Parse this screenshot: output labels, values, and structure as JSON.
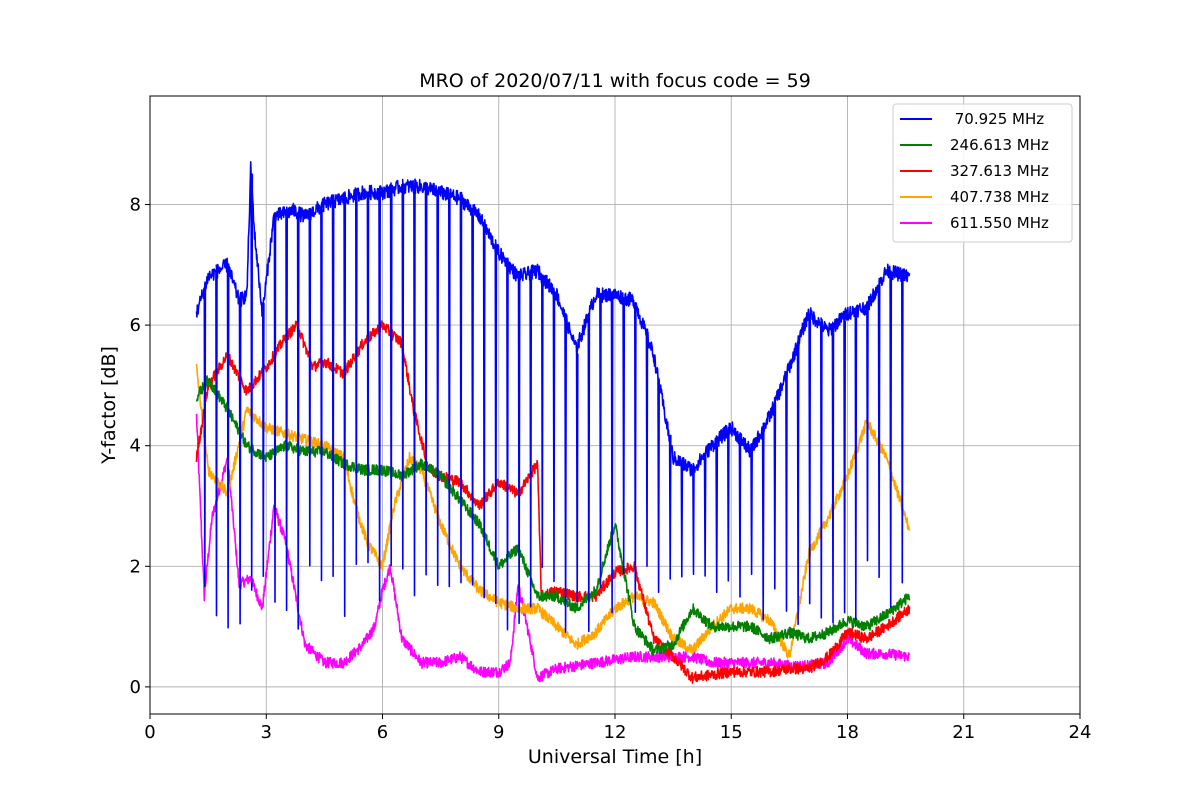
{
  "chart_data": {
    "type": "line",
    "title": "MRO of 2020/07/11 with focus code = 59",
    "xlabel": "Universal Time [h]",
    "ylabel": "Y-factor [dB]",
    "xlim": [
      0,
      24
    ],
    "ylim": [
      -0.45,
      9.8
    ],
    "xticks": [
      0,
      3,
      6,
      9,
      12,
      15,
      18,
      21,
      24
    ],
    "xtick_labels": [
      "0",
      "3",
      "6",
      "9",
      "12",
      "15",
      "18",
      "21",
      "24"
    ],
    "yticks": [
      0,
      2,
      4,
      6,
      8
    ],
    "ytick_labels": [
      "0",
      "2",
      "4",
      "6",
      "8"
    ],
    "grid": true,
    "legend_position": "top-right",
    "series": [
      {
        "name": " 70.925 MHz",
        "color": "#0000ff",
        "style": "dense vertical drop-outs roughly every 0.3 h",
        "x": [
          1.2,
          1.5,
          2.0,
          2.3,
          2.5,
          2.6,
          2.7,
          2.9,
          3.2,
          3.7,
          4.0,
          4.5,
          5.0,
          5.5,
          6.0,
          6.5,
          7.0,
          7.5,
          8.0,
          8.5,
          9.0,
          9.5,
          10.0,
          10.5,
          11.0,
          11.5,
          12.0,
          12.5,
          13.0,
          13.5,
          14.0,
          14.5,
          15.0,
          15.5,
          16.0,
          16.5,
          17.0,
          17.5,
          18.0,
          18.5,
          19.0,
          19.6
        ],
        "y": [
          6.2,
          6.8,
          7.0,
          6.4,
          6.5,
          8.6,
          7.5,
          6.2,
          7.8,
          7.9,
          7.8,
          8.0,
          8.1,
          8.2,
          8.2,
          8.3,
          8.3,
          8.2,
          8.1,
          7.8,
          7.2,
          6.8,
          6.9,
          6.5,
          5.6,
          6.5,
          6.5,
          6.4,
          5.5,
          3.8,
          3.6,
          4.0,
          4.3,
          3.9,
          4.5,
          5.3,
          6.2,
          5.9,
          6.2,
          6.3,
          6.9,
          6.8
        ],
        "dropouts_to": 1.5,
        "dropout_interval_h": 0.3
      },
      {
        "name": "246.613 MHz",
        "color": "#008000",
        "x": [
          1.2,
          1.5,
          2.0,
          2.5,
          3.0,
          3.5,
          4.0,
          4.5,
          5.0,
          5.5,
          6.0,
          6.5,
          7.0,
          7.5,
          8.0,
          8.5,
          9.0,
          9.5,
          10.0,
          10.5,
          11.0,
          11.5,
          12.0,
          12.5,
          13.0,
          13.5,
          14.0,
          14.5,
          15.0,
          15.5,
          16.0,
          16.5,
          17.0,
          17.5,
          18.0,
          18.5,
          19.0,
          19.6
        ],
        "y": [
          4.8,
          5.1,
          4.6,
          4.0,
          3.8,
          4.0,
          3.9,
          3.9,
          3.7,
          3.6,
          3.6,
          3.5,
          3.7,
          3.5,
          3.1,
          2.7,
          2.0,
          2.3,
          1.5,
          1.5,
          1.3,
          1.6,
          2.7,
          1.0,
          0.6,
          0.7,
          1.3,
          1.0,
          1.0,
          1.0,
          0.8,
          0.9,
          0.8,
          0.9,
          1.1,
          1.0,
          1.2,
          1.5
        ]
      },
      {
        "name": "327.613 MHz",
        "color": "#ff0000",
        "x": [
          1.2,
          1.5,
          2.0,
          2.5,
          3.0,
          3.5,
          3.8,
          4.2,
          4.5,
          5.0,
          5.5,
          6.0,
          6.5,
          6.8,
          7.2,
          7.5,
          8.0,
          8.5,
          9.0,
          9.5,
          10.0,
          10.1,
          10.5,
          11.0,
          11.5,
          12.0,
          12.5,
          13.0,
          13.5,
          14.0,
          14.5,
          15.0,
          15.5,
          16.0,
          16.5,
          17.0,
          17.5,
          18.0,
          18.5,
          19.0,
          19.6
        ],
        "y": [
          3.8,
          5.0,
          5.5,
          4.9,
          5.3,
          5.8,
          6.0,
          5.3,
          5.4,
          5.2,
          5.7,
          6.0,
          5.7,
          4.6,
          3.6,
          3.5,
          3.4,
          3.0,
          3.4,
          3.2,
          3.7,
          1.5,
          1.6,
          1.5,
          1.5,
          1.9,
          2.0,
          0.8,
          0.5,
          0.15,
          0.2,
          0.25,
          0.25,
          0.25,
          0.3,
          0.3,
          0.5,
          0.9,
          0.8,
          1.0,
          1.3
        ]
      },
      {
        "name": "407.738 MHz",
        "color": "#ffa500",
        "x": [
          1.2,
          1.5,
          2.0,
          2.5,
          3.0,
          3.5,
          4.0,
          4.5,
          5.0,
          5.3,
          5.6,
          6.0,
          6.3,
          6.7,
          7.0,
          7.5,
          8.0,
          8.5,
          9.0,
          9.5,
          10.0,
          10.5,
          11.0,
          11.5,
          12.0,
          12.5,
          13.0,
          13.5,
          14.0,
          14.5,
          15.0,
          15.5,
          16.0,
          16.5,
          17.0,
          17.5,
          18.0,
          18.5,
          19.0,
          19.6
        ],
        "y": [
          5.3,
          3.6,
          3.2,
          4.6,
          4.3,
          4.2,
          4.1,
          4.0,
          3.8,
          3.0,
          2.4,
          2.0,
          3.0,
          3.8,
          3.6,
          2.7,
          2.0,
          1.6,
          1.4,
          1.3,
          1.3,
          1.0,
          0.7,
          0.9,
          1.3,
          1.5,
          1.4,
          0.8,
          0.6,
          1.0,
          1.3,
          1.3,
          1.1,
          0.5,
          2.2,
          2.8,
          3.5,
          4.4,
          3.8,
          2.6
        ]
      },
      {
        "name": "611.550 MHz",
        "color": "#ff00ff",
        "x": [
          1.2,
          1.4,
          1.6,
          2.0,
          2.3,
          2.6,
          2.9,
          3.2,
          3.5,
          4.0,
          4.5,
          5.0,
          5.5,
          5.8,
          6.0,
          6.2,
          6.5,
          7.0,
          7.5,
          8.0,
          8.5,
          9.0,
          9.3,
          9.5,
          9.8,
          10.0,
          10.5,
          11.0,
          11.5,
          12.0,
          12.5,
          13.0,
          13.5,
          14.0,
          14.5,
          15.0,
          15.5,
          16.0,
          16.5,
          17.0,
          17.5,
          18.0,
          18.5,
          19.0,
          19.6
        ],
        "y": [
          4.5,
          1.5,
          2.8,
          3.8,
          1.7,
          1.8,
          1.3,
          3.0,
          2.4,
          0.7,
          0.4,
          0.4,
          0.7,
          1.0,
          1.6,
          2.0,
          0.8,
          0.4,
          0.4,
          0.5,
          0.25,
          0.25,
          0.4,
          1.7,
          0.8,
          0.15,
          0.3,
          0.35,
          0.4,
          0.45,
          0.5,
          0.5,
          0.5,
          0.5,
          0.4,
          0.4,
          0.4,
          0.4,
          0.35,
          0.35,
          0.4,
          0.8,
          0.55,
          0.55,
          0.5
        ]
      }
    ]
  }
}
